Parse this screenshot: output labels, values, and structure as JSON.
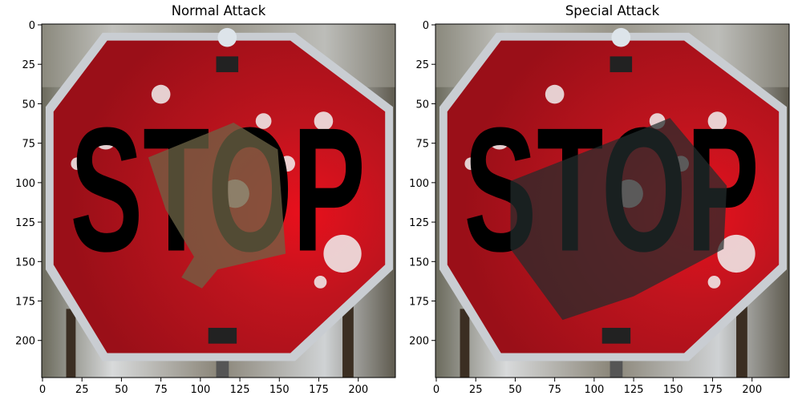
{
  "chart_data": [
    {
      "type": "image",
      "title": "Normal Attack",
      "image_text": "STOP",
      "xlim": [
        -0.5,
        223.5
      ],
      "ylim": [
        223.5,
        -0.5
      ],
      "xticks": [
        0,
        25,
        50,
        75,
        100,
        125,
        150,
        175,
        200
      ],
      "yticks": [
        0,
        25,
        50,
        75,
        100,
        125,
        150,
        175,
        200
      ]
    },
    {
      "type": "image",
      "title": "Special Attack",
      "image_text": "STOP",
      "xlim": [
        -0.5,
        223.5
      ],
      "ylim": [
        223.5,
        -0.5
      ],
      "xticks": [
        0,
        25,
        50,
        75,
        100,
        125,
        150,
        175,
        200
      ],
      "yticks": [
        0,
        25,
        50,
        75,
        100,
        125,
        150,
        175,
        200
      ]
    }
  ]
}
